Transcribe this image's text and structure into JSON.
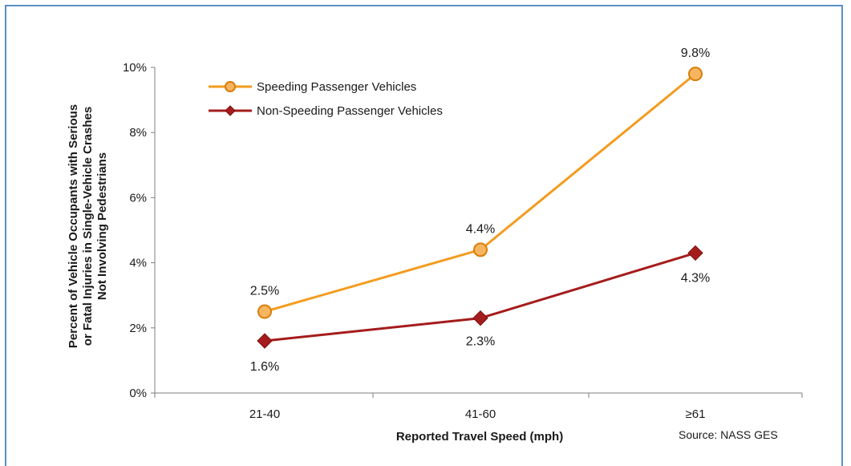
{
  "chart_data": {
    "type": "line",
    "categories": [
      "21-40",
      "41-60",
      "≥61"
    ],
    "series": [
      {
        "name": "Speeding Passenger Vehicles",
        "values": [
          2.5,
          4.4,
          9.8
        ],
        "labels": [
          "2.5%",
          "4.4%",
          "9.8%"
        ],
        "color": "#f39c1e",
        "marker": "circle"
      },
      {
        "name": "Non-Speeding Passenger Vehicles",
        "values": [
          1.6,
          2.3,
          4.3
        ],
        "labels": [
          "1.6%",
          "2.3%",
          "4.3%"
        ],
        "color": "#a51c1c",
        "marker": "diamond"
      }
    ],
    "yticks": [
      "0%",
      "2%",
      "4%",
      "6%",
      "8%",
      "10%"
    ],
    "ylim": [
      0,
      10
    ],
    "xlabel": "Reported Travel Speed (mph)",
    "ylabel_lines": [
      "Percent of Vehicle Occupants with Serious",
      "or Fatal Injuries in Single-Vehicle Crashes",
      "Not Involving Pedestrians"
    ],
    "source": "Source: NASS GES",
    "legend_position": "top-left",
    "grid": false
  }
}
